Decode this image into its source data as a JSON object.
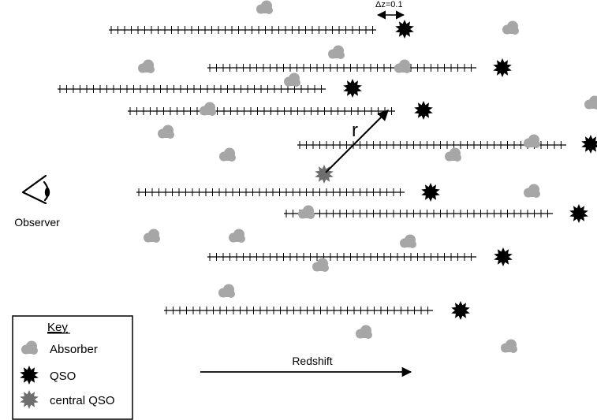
{
  "scale_label": "Δz=0.1",
  "separation_label": "r",
  "observer_label": "Observer",
  "redshift_label": "Redshift",
  "key": {
    "title": "Key",
    "items": [
      {
        "label": "Absorber",
        "icon": "absorber-cloud-icon"
      },
      {
        "label": "QSO",
        "icon": "qso-star-icon"
      },
      {
        "label": "central QSO",
        "icon": "central-qso-star-icon"
      }
    ]
  },
  "colors": {
    "absorber": "#a6a6a6",
    "qso": "#000000",
    "central_qso": "#6e6e6e",
    "line": "#000000"
  }
}
